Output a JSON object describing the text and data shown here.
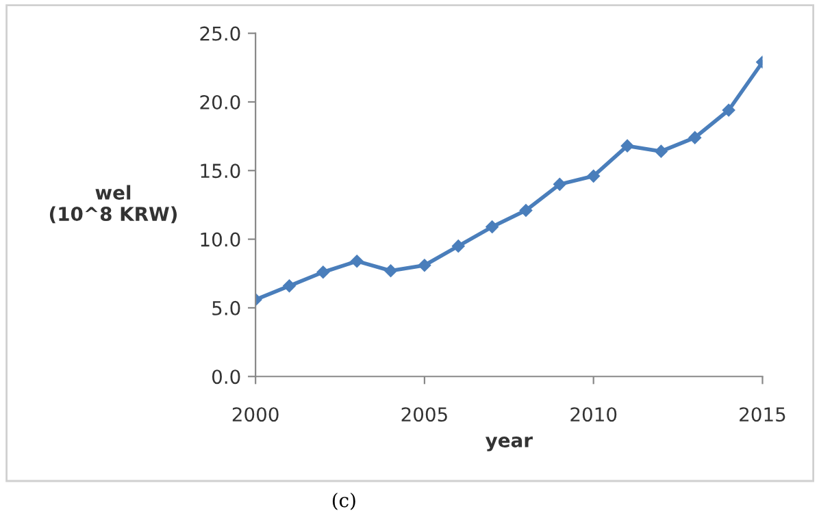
{
  "chart_data": {
    "type": "line",
    "xlabel": "year",
    "ylabel": "wel\n(10^8 KRW)",
    "x": [
      2000,
      2001,
      2002,
      2003,
      2004,
      2005,
      2006,
      2007,
      2008,
      2009,
      2010,
      2011,
      2012,
      2013,
      2014,
      2015
    ],
    "series": [
      {
        "color": "#4a7ebb",
        "values": [
          5.6,
          6.6,
          7.6,
          8.4,
          7.7,
          8.1,
          9.5,
          10.9,
          12.1,
          14.0,
          14.6,
          16.8,
          16.4,
          17.4,
          19.4,
          22.9
        ]
      }
    ],
    "xlim": [
      2000,
      2015
    ],
    "xticks": [
      2000,
      2005,
      2010,
      2015
    ],
    "ylim": [
      0,
      25
    ],
    "yticks": [
      {
        "value": 0,
        "label": "0.0"
      },
      {
        "value": 5,
        "label": "5.0"
      },
      {
        "value": 10,
        "label": "10.0"
      },
      {
        "value": 15,
        "label": "15.0"
      },
      {
        "value": 20,
        "label": "20.0"
      },
      {
        "value": 25,
        "label": "25.0"
      }
    ],
    "marker": "diamond",
    "line_style": "solid",
    "grid": false,
    "legend": false,
    "annotations": [
      "(c)"
    ]
  }
}
